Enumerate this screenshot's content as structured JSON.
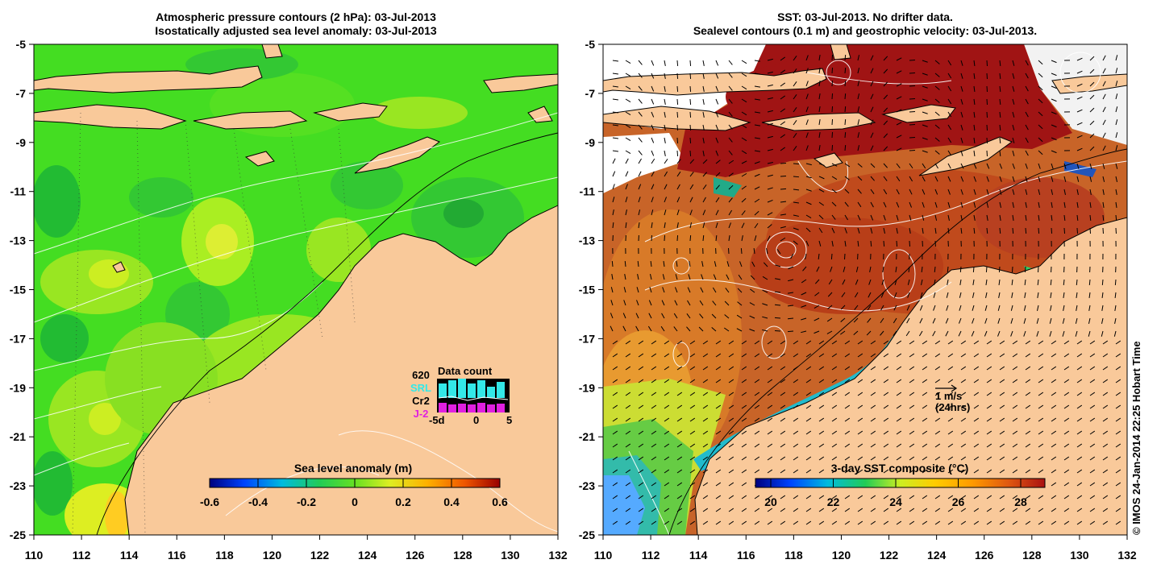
{
  "left_panel": {
    "title_line1": "Atmospheric pressure contours (2 hPa): 03-Jul-2013",
    "title_line2": "Isostatically adjusted sea level anomaly: 03-Jul-2013",
    "x_ticks": [
      "110",
      "112",
      "114",
      "116",
      "118",
      "120",
      "122",
      "124",
      "126",
      "128",
      "130",
      "132"
    ],
    "y_ticks": [
      "-5",
      "-7",
      "-9",
      "-11",
      "-13",
      "-15",
      "-17",
      "-19",
      "-21",
      "-23",
      "-25"
    ],
    "colorbar": {
      "label": "Sea level anomaly (m)",
      "ticks": [
        "-0.6",
        "-0.4",
        "-0.2",
        "0",
        "0.2",
        "0.4",
        "0.6"
      ]
    },
    "data_count": {
      "title": "Data count",
      "labels": [
        {
          "text": "620",
          "color": "#000000"
        },
        {
          "text": "SRL",
          "color": "#33e8e8"
        },
        {
          "text": "Cr2",
          "color": "#000000"
        },
        {
          "text": "J-2",
          "color": "#e020e0"
        }
      ],
      "axis_ticks": [
        "-5d",
        "0",
        "5"
      ]
    }
  },
  "right_panel": {
    "title_line1": "SST: 03-Jul-2013. No drifter data.",
    "title_line2": "Sealevel contours (0.1 m) and geostrophic velocity: 03-Jul-2013.",
    "x_ticks": [
      "110",
      "112",
      "114",
      "116",
      "118",
      "120",
      "122",
      "124",
      "126",
      "128",
      "130",
      "132"
    ],
    "y_ticks": [
      "-5",
      "-7",
      "-9",
      "-11",
      "-13",
      "-15",
      "-17",
      "-19",
      "-21",
      "-23",
      "-25"
    ],
    "colorbar": {
      "label": "3-day SST composite (°C)",
      "ticks": [
        "20",
        "22",
        "24",
        "26",
        "28"
      ]
    },
    "scale_arrow": {
      "line1": "1 m/s",
      "line2": "(24hrs)"
    }
  },
  "credit": "© IMOS 24-Jan-2014 22:25 Hobart Time",
  "colors": {
    "land": "#f9c99a",
    "sla_green": "#44dd22",
    "sla_yellow": "#c8ee22",
    "sst_red": "#c86428",
    "sst_darkred": "#a01414"
  }
}
